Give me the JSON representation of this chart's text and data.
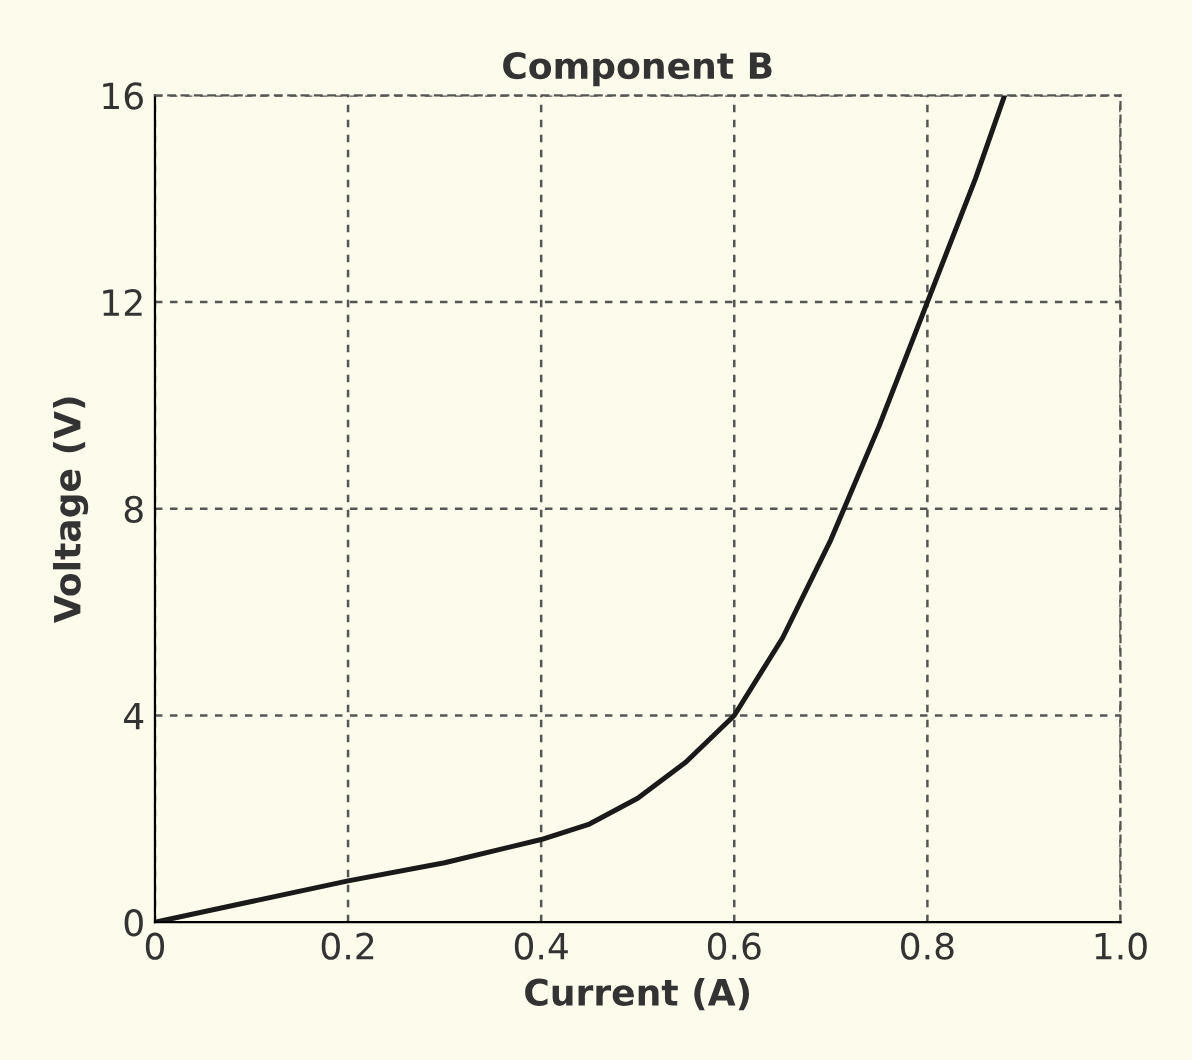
{
  "chart_data": {
    "type": "line",
    "title": "Component B",
    "xlabel": "Current (A)",
    "ylabel": "Voltage (V)",
    "x": [
      0,
      0.1,
      0.2,
      0.3,
      0.4,
      0.45,
      0.5,
      0.55,
      0.6,
      0.65,
      0.7,
      0.75,
      0.8,
      0.85,
      0.88
    ],
    "series": [
      {
        "color": "#1a1a1a",
        "values": [
          0,
          0.4,
          0.8,
          1.15,
          1.6,
          1.9,
          2.4,
          3.1,
          4,
          5.5,
          7.4,
          9.6,
          12,
          14.4,
          16
        ]
      }
    ],
    "xlim": [
      0,
      1.0
    ],
    "ylim": [
      0,
      16
    ],
    "xticks": [
      0,
      0.2,
      0.4,
      0.6,
      0.8,
      {
        "value": 1.0,
        "label": "1.0"
      }
    ],
    "yticks": [
      0,
      4,
      8,
      12,
      16
    ],
    "grid": true,
    "line_style": "solid",
    "marker": "none",
    "legend": false
  }
}
